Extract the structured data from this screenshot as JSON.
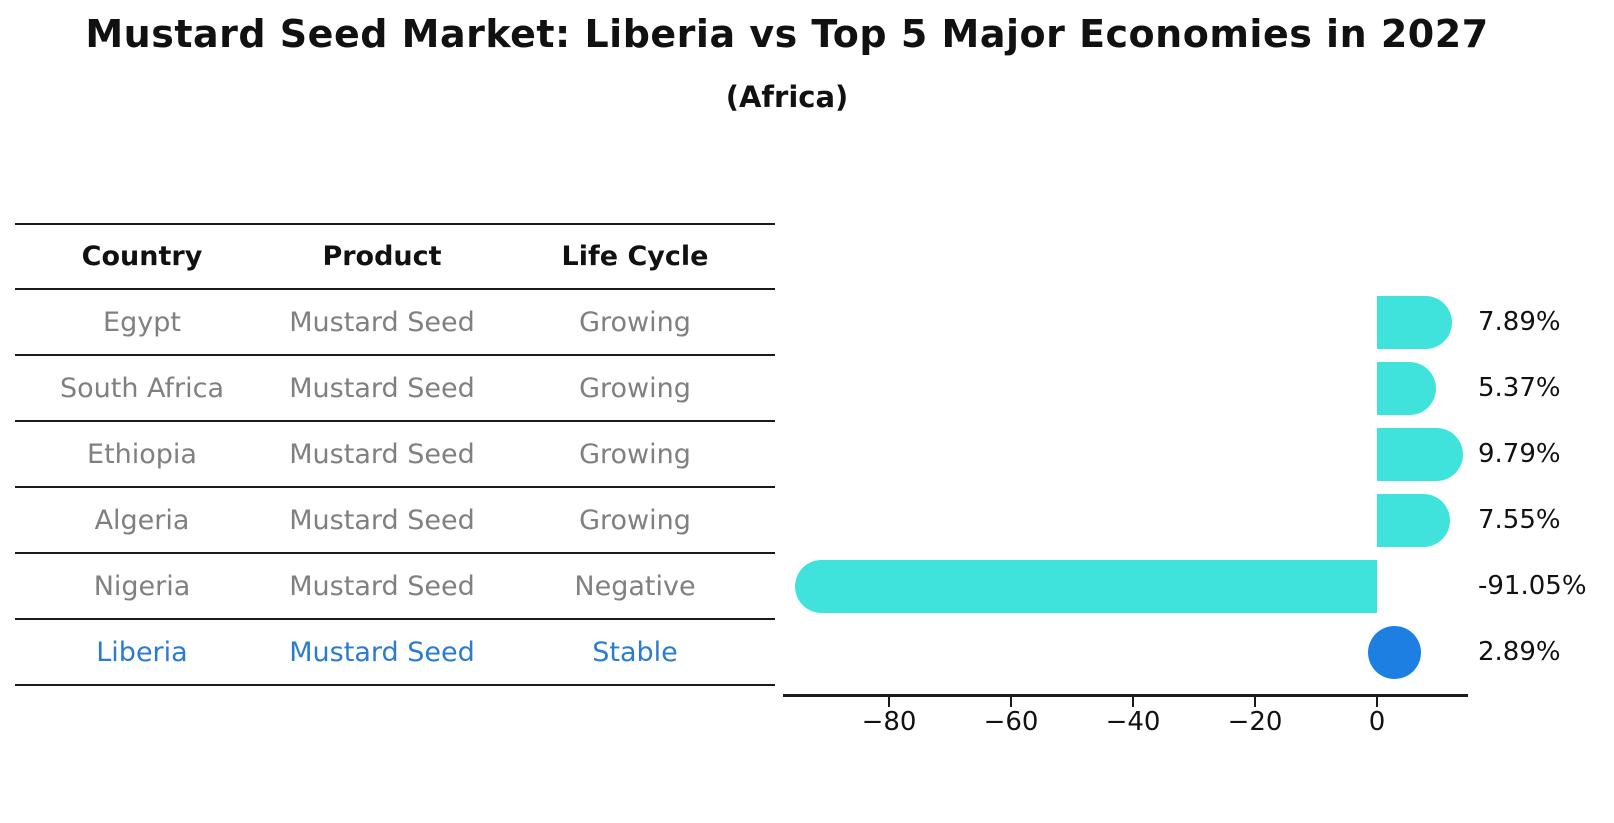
{
  "title": "Mustard Seed Market: Liberia vs Top 5 Major Economies in 2027",
  "subtitle": "(Africa)",
  "table": {
    "headers": [
      "Country",
      "Product",
      "Life Cycle"
    ],
    "rows": [
      {
        "country": "Egypt",
        "product": "Mustard Seed",
        "life_cycle": "Growing",
        "highlight": false
      },
      {
        "country": "South Africa",
        "product": "Mustard Seed",
        "life_cycle": "Growing",
        "highlight": false
      },
      {
        "country": "Ethiopia",
        "product": "Mustard Seed",
        "life_cycle": "Growing",
        "highlight": false
      },
      {
        "country": "Algeria",
        "product": "Mustard Seed",
        "life_cycle": "Growing",
        "highlight": false
      },
      {
        "country": "Nigeria",
        "product": "Mustard Seed",
        "life_cycle": "Negative",
        "highlight": false
      },
      {
        "country": "Liberia",
        "product": "Mustard Seed",
        "life_cycle": "Stable",
        "highlight": true
      }
    ]
  },
  "chart_data": {
    "type": "bar",
    "orientation": "horizontal",
    "title": "Mustard Seed Market: Liberia vs Top 5 Major Economies in 2027",
    "subtitle": "(Africa)",
    "categories": [
      "Egypt",
      "South Africa",
      "Ethiopia",
      "Algeria",
      "Nigeria",
      "Liberia"
    ],
    "values": [
      7.89,
      5.37,
      9.79,
      7.55,
      -91.05,
      2.89
    ],
    "value_labels": [
      "7.89%",
      "5.37%",
      "9.79%",
      "7.55%",
      "-91.05%",
      "2.89%"
    ],
    "x_ticks": [
      -80,
      -60,
      -40,
      -20,
      0
    ],
    "x_tick_labels": [
      "−80",
      "−60",
      "−40",
      "−20",
      "0"
    ],
    "xlim": [
      -97,
      15
    ],
    "grid": false,
    "legend": false,
    "highlight_index": 5,
    "bar_color_default": "#40E3DC",
    "bar_color_highlight": "#1E7FE3",
    "bar_cap_style": "round"
  },
  "colors": {
    "background": "#FFFFFF",
    "bar_cyan": "#40E3DC",
    "bar_blue": "#1E7FE3",
    "highlight_text": "#2B7BCE",
    "muted_text": "#808080",
    "text": "#111111",
    "line": "#1A1A1A"
  }
}
